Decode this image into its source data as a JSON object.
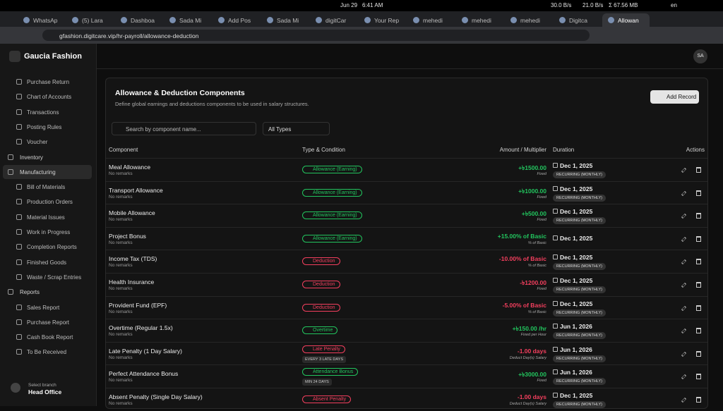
{
  "system_bar": {
    "date": "Jun 29",
    "time": "6:41 AM",
    "download": "30.0 B/s",
    "upload": "21.0 B/s",
    "total": "Σ 67.56 MB",
    "lang": "en"
  },
  "tabs": [
    "WhatsAp",
    "(5) Lara",
    "Dashboa",
    "Sada Mi",
    "Add Pos",
    "Sada Mi",
    "digitCar",
    "Your Rep",
    "mehedi",
    "mehedi",
    "mehedi",
    "Digitca",
    "Allowan"
  ],
  "url": "gfashion.digitcare.vip/hr-payroll/allowance-deduction",
  "sidebar": {
    "brand": "Gaucia Fashion",
    "items": [
      {
        "label": "Purchase Return",
        "level": "sub"
      },
      {
        "label": "Chart of Accounts",
        "level": "sub"
      },
      {
        "label": "Transactions",
        "level": "sub"
      },
      {
        "label": "Posting Rules",
        "level": "sub"
      },
      {
        "label": "Voucher",
        "level": "sub"
      },
      {
        "label": "Inventory",
        "level": "sec"
      },
      {
        "label": "Manufacturing",
        "level": "sec",
        "active": true
      },
      {
        "label": "Bill of Materials",
        "level": "sub"
      },
      {
        "label": "Production Orders",
        "level": "sub"
      },
      {
        "label": "Material Issues",
        "level": "sub"
      },
      {
        "label": "Work in Progress",
        "level": "sub"
      },
      {
        "label": "Completion Reports",
        "level": "sub"
      },
      {
        "label": "Finished Goods",
        "level": "sub"
      },
      {
        "label": "Waste / Scrap Entries",
        "level": "sub"
      },
      {
        "label": "Reports",
        "level": "sec"
      },
      {
        "label": "Sales Report",
        "level": "sub"
      },
      {
        "label": "Purchase Report",
        "level": "sub"
      },
      {
        "label": "Cash Book Report",
        "level": "sub"
      },
      {
        "label": "To Be Received",
        "level": "sub"
      }
    ],
    "branch_label": "Select branch",
    "branch": "Head Office"
  },
  "header": {
    "avatar": "SA"
  },
  "page": {
    "title": "Allowance & Deduction Components",
    "subtitle": "Define global earnings and deductions components to be used in salary structures.",
    "add_button": "Add Record",
    "search_placeholder": "Search by component name...",
    "filter": "All Types"
  },
  "table": {
    "columns": [
      "Component",
      "Type & Condition",
      "Amount / Multiplier",
      "Duration",
      "Actions"
    ],
    "rows": [
      {
        "name": "Meal Allowance",
        "remarks": "No remarks",
        "type": "Allowance (Earning)",
        "amount": "+৳1500.00",
        "note": "Fixed",
        "date": "Dec 1, 2025",
        "recurrence": "RECURRING (MONTHLY)",
        "color": "#22c55e"
      },
      {
        "name": "Transport Allowance",
        "remarks": "No remarks",
        "type": "Allowance (Earning)",
        "amount": "+৳1000.00",
        "note": "Fixed",
        "date": "Dec 1, 2025",
        "recurrence": "RECURRING (MONTHLY)",
        "color": "#22c55e"
      },
      {
        "name": "Mobile Allowance",
        "remarks": "No remarks",
        "type": "Allowance (Earning)",
        "amount": "+৳500.00",
        "note": "Fixed",
        "date": "Dec 1, 2025",
        "recurrence": "RECURRING (MONTHLY)",
        "color": "#22c55e"
      },
      {
        "name": "Project Bonus",
        "remarks": "No remarks",
        "type": "Allowance (Earning)",
        "amount": "+15.00% of Basic",
        "note": "% of Basic",
        "date": "Dec 1, 2025",
        "color": "#22c55e"
      },
      {
        "name": "Income Tax (TDS)",
        "remarks": "No remarks",
        "type": "Deduction",
        "amount": "-10.00% of Basic",
        "note": "% of Basic",
        "date": "Dec 1, 2025",
        "recurrence": "RECURRING (MONTHLY)",
        "color": "#f43f5e"
      },
      {
        "name": "Health Insurance",
        "remarks": "No remarks",
        "type": "Deduction",
        "amount": "-৳1200.00",
        "note": "Fixed",
        "date": "Dec 1, 2025",
        "recurrence": "RECURRING (MONTHLY)",
        "color": "#f43f5e"
      },
      {
        "name": "Provident Fund (EPF)",
        "remarks": "No remarks",
        "type": "Deduction",
        "amount": "-5.00% of Basic",
        "note": "% of Basic",
        "date": "Dec 1, 2025",
        "recurrence": "RECURRING (MONTHLY)",
        "color": "#f43f5e"
      },
      {
        "name": "Overtime (Regular 1.5x)",
        "remarks": "No remarks",
        "type": "Overtime",
        "amount": "+৳150.00 /hr",
        "note": "Fixed per Hour",
        "date": "Jun 1, 2026",
        "recurrence": "RECURRING (MONTHLY)",
        "color": "#22c55e"
      },
      {
        "name": "Late Penalty (1 Day Salary)",
        "remarks": "No remarks",
        "type": "Late Penalty",
        "condition": "EVERY 3 LATE DAYS",
        "amount": "-1.00 days",
        "note": "Deduct Day(s) Salary",
        "date": "Jun 1, 2026",
        "recurrence": "RECURRING (MONTHLY)",
        "color": "#f43f5e"
      },
      {
        "name": "Perfect Attendance Bonus",
        "remarks": "No remarks",
        "type": "Attendance Bonus",
        "condition": "MIN 24 DAYS",
        "amount": "+৳3000.00",
        "note": "Fixed",
        "date": "Jun 1, 2026",
        "recurrence": "RECURRING (MONTHLY)",
        "color": "#22c55e"
      },
      {
        "name": "Absent Penalty (Single Day Salary)",
        "remarks": "No remarks",
        "type": "Absent Penalty",
        "amount": "-1.00 days",
        "note": "Deduct Day(s) Salary",
        "date": "Dec 1, 2025",
        "recurrence": "RECURRING (MONTHLY)",
        "color": "#f43f5e"
      }
    ]
  }
}
